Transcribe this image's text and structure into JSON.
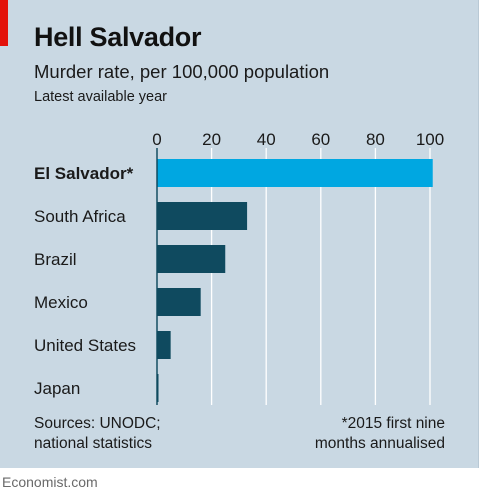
{
  "title": "Hell Salvador",
  "subtitle": "Murder rate, per 100,000 population",
  "subtitle2": "Latest available year",
  "source_lines": [
    "Sources: UNODC;",
    "national statistics"
  ],
  "note_lines": [
    "*2015 first nine",
    "months annualised"
  ],
  "logo": "Economist.com",
  "colors": {
    "background": "#c9d8e3",
    "highlight_bar": "#00a7e1",
    "bar": "#0f4a5f",
    "gridline": "#ffffff",
    "accent": "#e3120b"
  },
  "chart_data": {
    "type": "bar",
    "orientation": "horizontal",
    "categories": [
      "El Salvador*",
      "South Africa",
      "Brazil",
      "Mexico",
      "United States",
      "Japan"
    ],
    "values": [
      101,
      33,
      25,
      16,
      5,
      0.4
    ],
    "highlight": "El Salvador*",
    "xlim": [
      0,
      100
    ],
    "ticks": [
      0,
      20,
      40,
      60,
      80,
      100
    ],
    "tick_labels": [
      "0",
      "20",
      "40",
      "60",
      "80",
      "100"
    ],
    "axis_position": "top",
    "grid": true
  }
}
